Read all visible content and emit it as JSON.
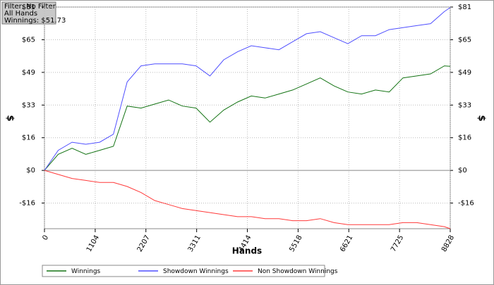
{
  "filter": {
    "lines": [
      "Filter: No Filter",
      "All Hands",
      "Winnings: $51.73"
    ]
  },
  "chart_data": {
    "type": "line",
    "xlabel": "Hands",
    "ylabel": "$",
    "x": [
      0,
      300,
      600,
      900,
      1200,
      1500,
      1800,
      2100,
      2400,
      2700,
      3000,
      3300,
      3600,
      3900,
      4200,
      4500,
      4800,
      5100,
      5400,
      5700,
      6000,
      6300,
      6600,
      6900,
      7200,
      7500,
      7800,
      8100,
      8400,
      8700,
      8828
    ],
    "xlim": [
      0,
      8828
    ],
    "xticks": [
      0,
      1104,
      2207,
      3311,
      4414,
      5518,
      6621,
      7725,
      8828
    ],
    "ylim": [
      -29,
      81.25
    ],
    "yticks": [
      {
        "value": -16.25,
        "label": "-$16"
      },
      {
        "value": 0,
        "label": "$0"
      },
      {
        "value": 16.25,
        "label": "$16"
      },
      {
        "value": 32.5,
        "label": "$33"
      },
      {
        "value": 48.75,
        "label": "$49"
      },
      {
        "value": 65,
        "label": "$65"
      },
      {
        "value": 81.25,
        "label": "$81"
      }
    ],
    "grid": true,
    "legend": "bottom",
    "series": [
      {
        "name": "Winnings",
        "color": "#137313",
        "values": [
          0,
          8,
          11,
          8,
          10,
          12,
          32,
          31,
          33,
          35,
          32,
          31,
          24,
          30,
          34,
          37,
          36,
          38,
          40,
          43,
          46,
          42,
          39,
          38,
          40,
          39,
          46,
          47,
          48,
          52,
          51.73
        ]
      },
      {
        "name": "Showdown Winnings",
        "color": "#4f4fff",
        "values": [
          0,
          10,
          14,
          13,
          14,
          18,
          44,
          52,
          53,
          53,
          53,
          52,
          47,
          55,
          59,
          62,
          61,
          60,
          64,
          68,
          69,
          66,
          63,
          67,
          67,
          70,
          71,
          72,
          73,
          79,
          81
        ]
      },
      {
        "name": "Non Showdown Winnings",
        "color": "#ff3a3a",
        "values": [
          0,
          -2,
          -4,
          -5,
          -6,
          -6,
          -8,
          -11,
          -15,
          -17,
          -19,
          -20,
          -21,
          -22,
          -23,
          -23,
          -24,
          -24,
          -25,
          -25,
          -24,
          -26,
          -27,
          -27,
          -27,
          -27,
          -26,
          -26,
          -27,
          -28,
          -29
        ]
      }
    ]
  }
}
